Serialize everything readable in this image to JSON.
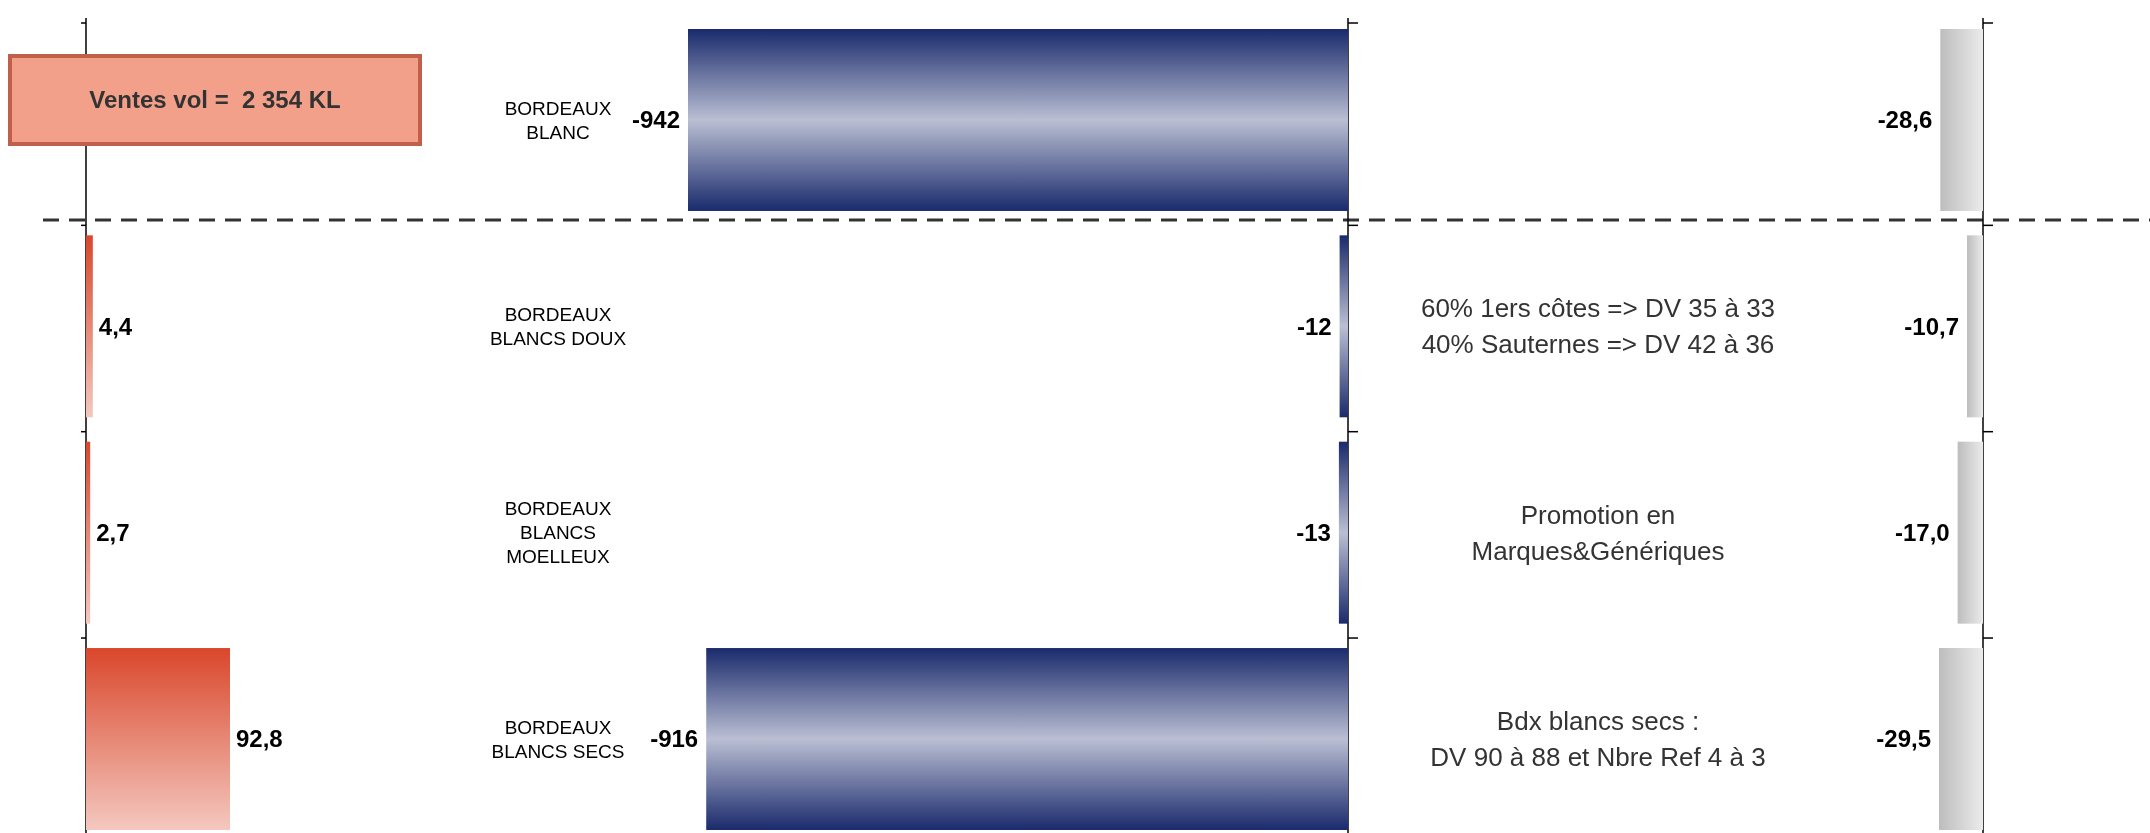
{
  "chart_data": [
    {
      "type": "bar",
      "orientation": "horizontal",
      "categories": [
        "BORDEAUX BLANC",
        "BORDEAUX BLANCS DOUX",
        "BORDEAUX BLANCS MOELLEUX",
        "BORDEAUX BLANCS SECS"
      ],
      "values": [
        null,
        4.4,
        2.7,
        92.8
      ],
      "value_labels": [
        null,
        "4,4",
        "2,7",
        "92,8"
      ],
      "color": "#d9472b",
      "annotations": [
        "Ventes vol =  2 354 KL"
      ]
    },
    {
      "type": "bar",
      "orientation": "horizontal",
      "categories": [
        null,
        null,
        null,
        null
      ],
      "values": [
        -942,
        -12,
        -13,
        -916
      ],
      "value_labels": [
        "-942",
        "-12",
        "-13",
        "-916"
      ],
      "color": "#1a2a6c",
      "annotations": [
        "60% 1ers côtes => DV 35 à 33\n40% Sauternes => DV 42 à 36",
        "Promotion en\nMarques&Génériques",
        "Bdx blancs secs :\nDV 90 à 88 et Nbre Ref 4 à 3"
      ]
    },
    {
      "type": "bar",
      "orientation": "horizontal",
      "categories": [
        null,
        null,
        null,
        null
      ],
      "values": [
        -28.6,
        -10.7,
        -17.0,
        -29.5
      ],
      "value_labels": [
        "-28,6",
        "-10,7",
        "-17,0",
        "-29,5"
      ],
      "color": "#bdbdbd"
    }
  ]
}
